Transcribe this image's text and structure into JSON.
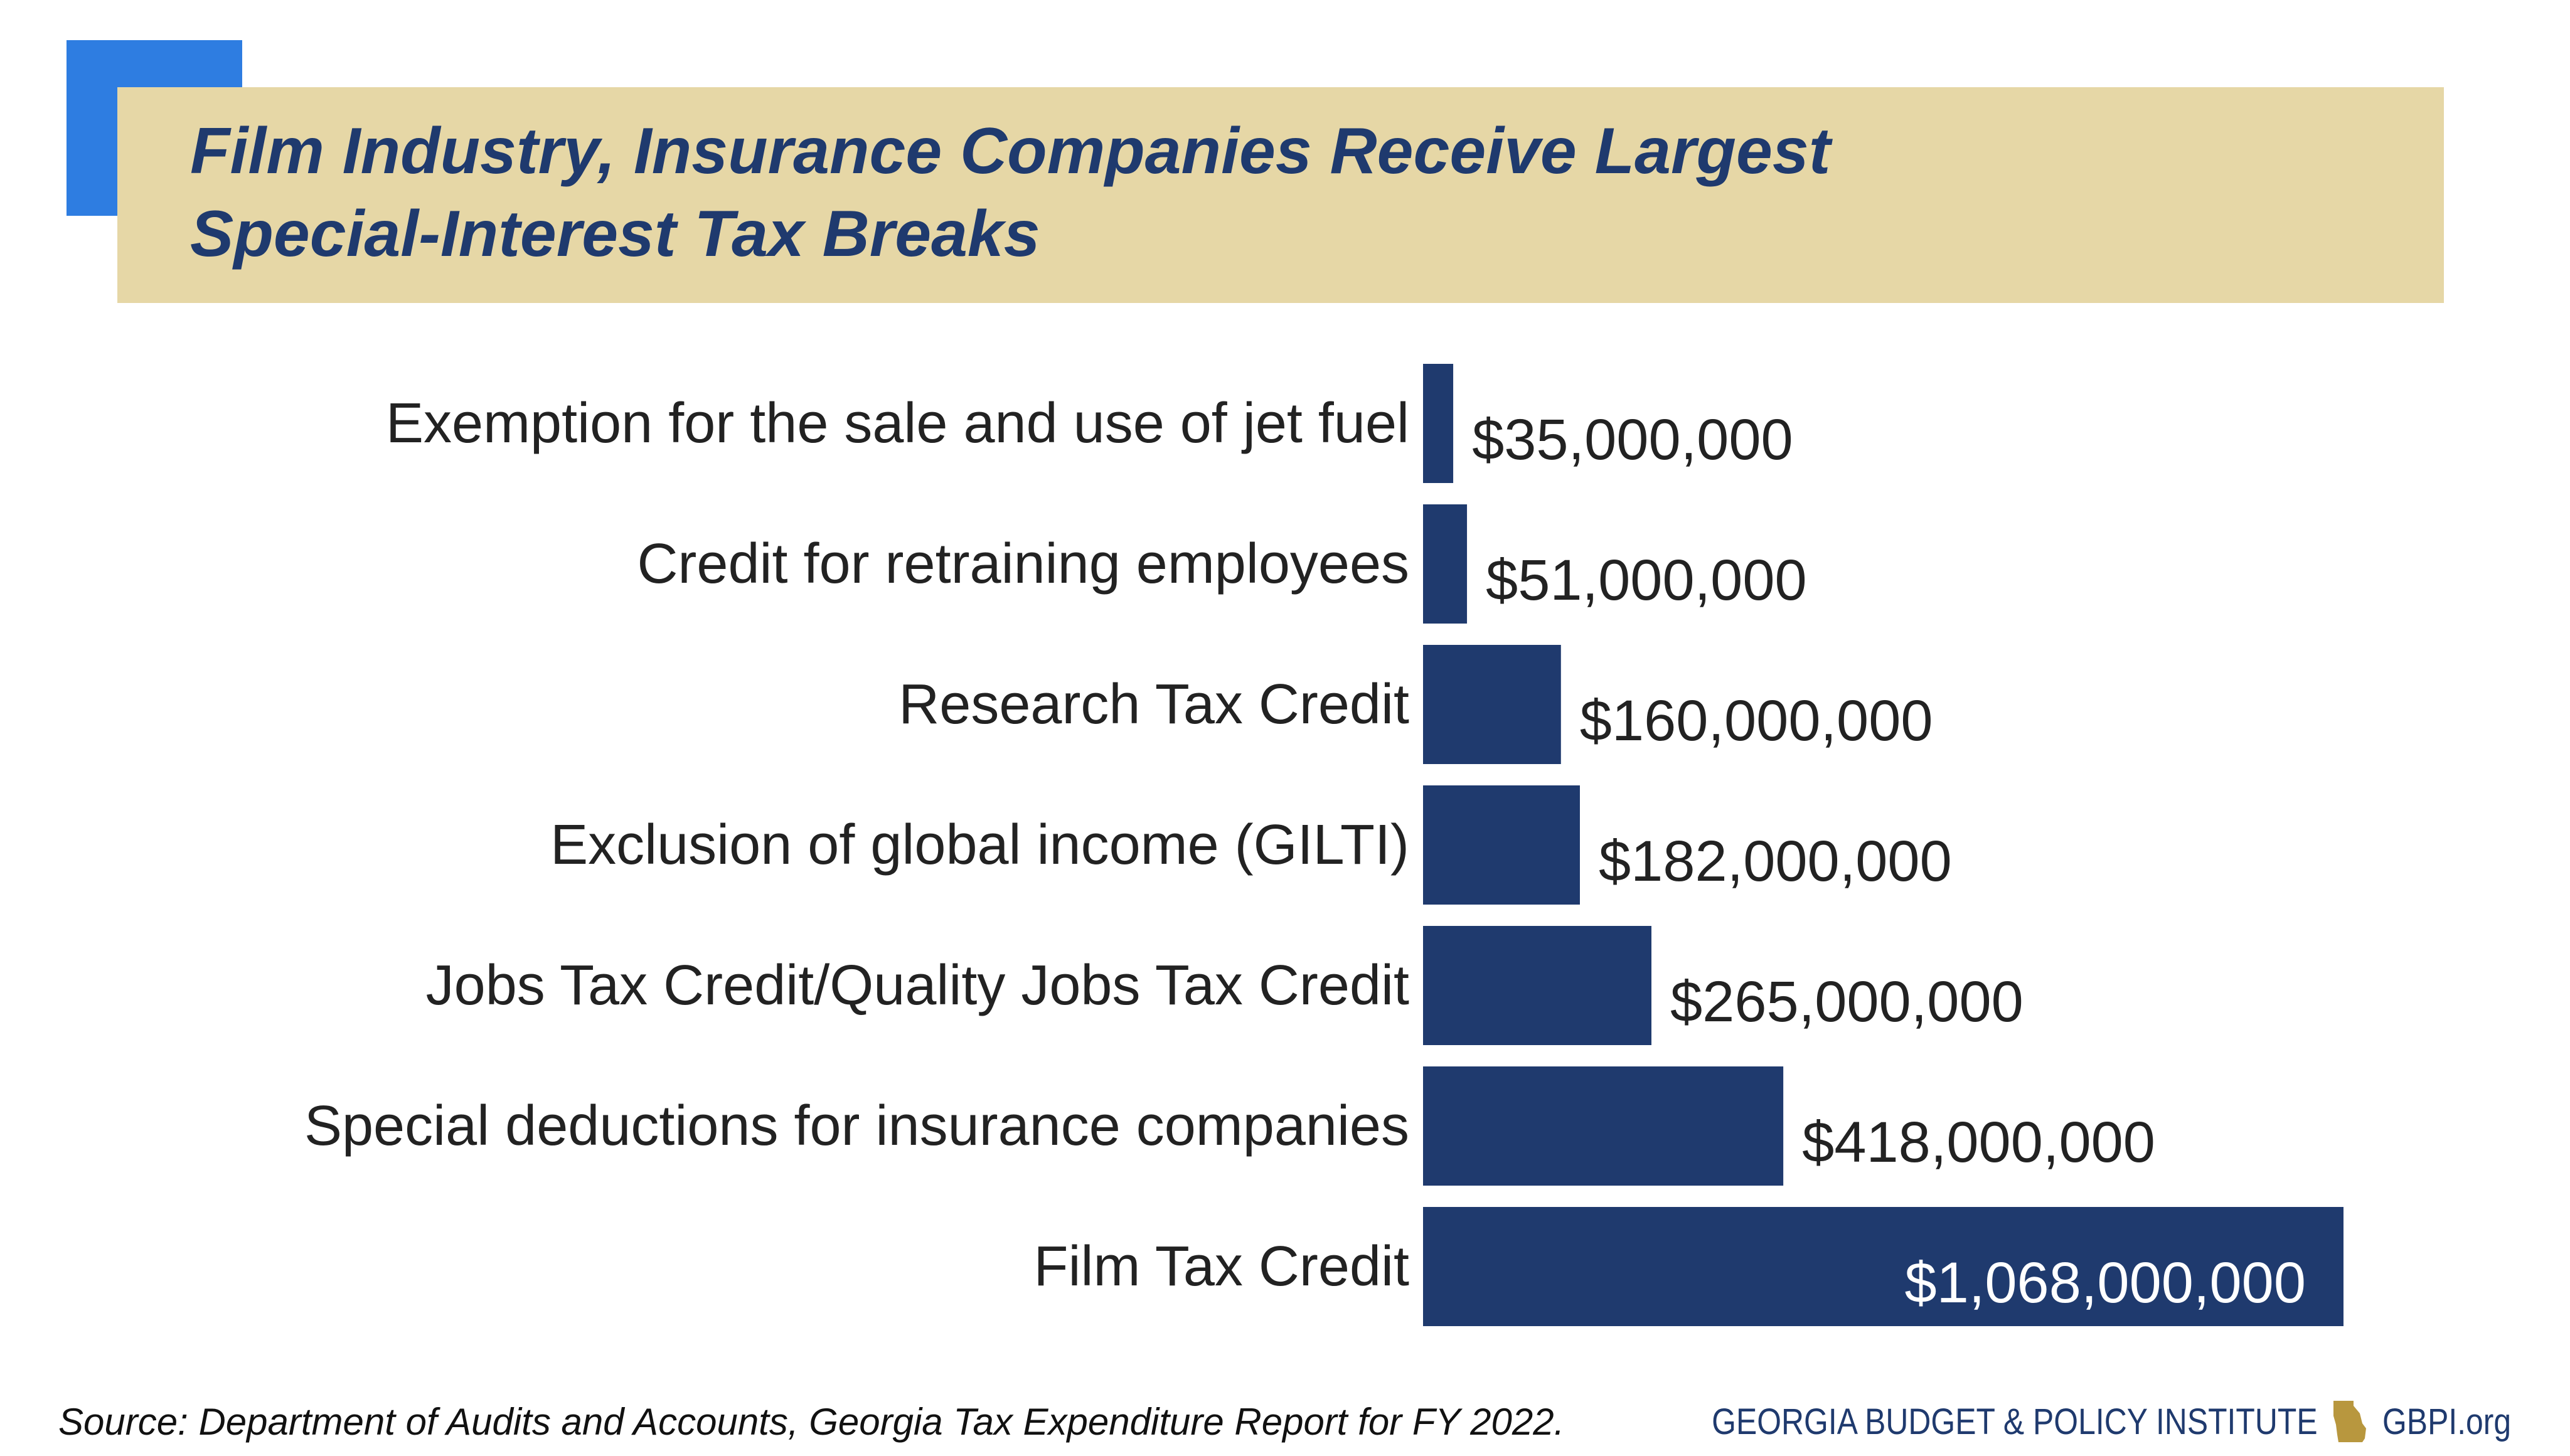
{
  "title": {
    "line1": "Film Industry, Insurance Companies Receive Largest",
    "line2": "Special-Interest Tax Breaks"
  },
  "colors": {
    "accent": "#2e7de1",
    "title_band": "#e6d7a6",
    "title_text": "#1f3a6e",
    "bar": "#1f3a6e",
    "label_text": "#222222",
    "inside_label": "#ffffff"
  },
  "chart_data": {
    "type": "bar",
    "orientation": "horizontal",
    "categories": [
      "Exemption for the sale and use of jet fuel",
      "Credit for retraining employees",
      "Research Tax Credit",
      "Exclusion of global income (GILTI)",
      "Jobs Tax Credit/Quality Jobs Tax Credit",
      "Special deductions for insurance companies",
      "Film Tax Credit"
    ],
    "values": [
      35000000,
      51000000,
      160000000,
      182000000,
      265000000,
      418000000,
      1068000000
    ],
    "data_labels": [
      "$35,000,000",
      "$51,000,000",
      "$160,000,000",
      "$182,000,000",
      "$265,000,000",
      "$418,000,000",
      "$1,068,000,000"
    ],
    "title": "Film Industry, Insurance Companies Receive Largest Special-Interest Tax Breaks",
    "xlabel": "",
    "ylabel": "",
    "xlim": [
      0,
      1068000000
    ],
    "grid": false,
    "legend": "none"
  },
  "footer": {
    "source": "Source: Department of Audits and Accounts, Georgia Tax Expenditure Report for FY 2022.",
    "org": "GEORGIA BUDGET & POLICY INSTITUTE",
    "url": "GBPI.org",
    "icon": "georgia-state-icon"
  }
}
